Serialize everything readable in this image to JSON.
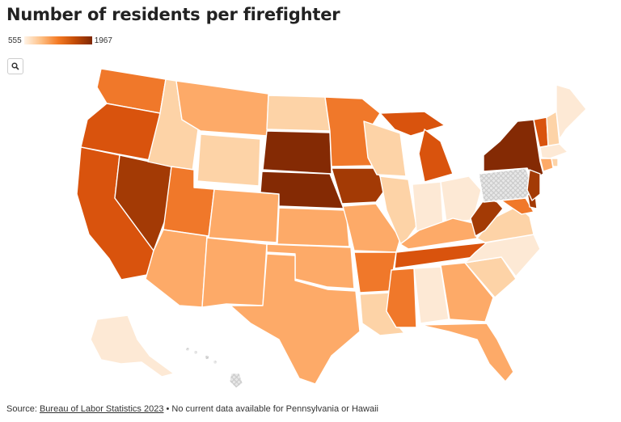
{
  "title": "Number of residents per firefighter",
  "legend": {
    "min_label": "555",
    "max_label": "1967"
  },
  "zoom_button": {
    "icon": "magnifier-icon"
  },
  "source": {
    "prefix": "Source: ",
    "link_text": "Bureau of Labor Statistics 2023",
    "note": " • No current data available for Pennsylvania or Hawaii"
  },
  "colors": {
    "level_1": "#fde9d5",
    "level_2": "#fdd3a7",
    "level_3": "#fdaa68",
    "level_4": "#f0782a",
    "level_5": "#d9530d",
    "level_6": "#a33a05",
    "level_7": "#842a04",
    "no_data": "#e3e3e3"
  }
}
